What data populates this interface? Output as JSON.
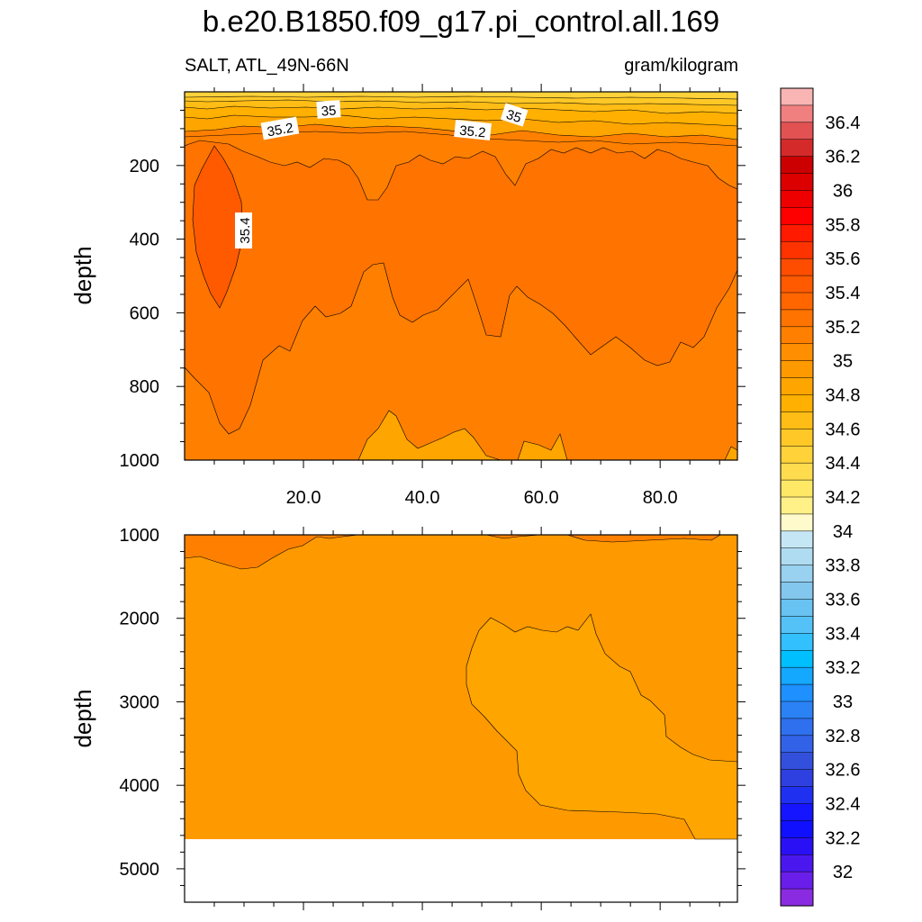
{
  "chart_data": [
    {
      "type": "contour",
      "panel": "upper",
      "title": "b.e20.B1850.f09_g17.pi_control.all.169",
      "subtitle_left": "SALT, ATL_49N-66N",
      "subtitle_right": "gram/kilogram",
      "ylabel": "depth",
      "xlabel": "",
      "xlim": [
        0,
        93
      ],
      "ylim": [
        1000,
        0
      ],
      "x_ticks": [
        20,
        40,
        60,
        80
      ],
      "x_tick_labels": [
        "20.0",
        "40.0",
        "60.0",
        "80.0"
      ],
      "y_ticks": [
        200,
        400,
        600,
        800,
        1000
      ],
      "y_tick_labels": [
        "200",
        "400",
        "600",
        "800",
        "1000"
      ],
      "contour_labels": [
        "35",
        "35",
        "35.2",
        "35.2",
        "35.4"
      ]
    },
    {
      "type": "contour",
      "panel": "lower",
      "ylabel": "depth",
      "xlim": [
        0,
        93
      ],
      "ylim": [
        5400,
        1000
      ],
      "y_ticks": [
        1000,
        2000,
        3000,
        4000,
        5000
      ],
      "y_tick_labels": [
        "1000",
        "2000",
        "3000",
        "4000",
        "5000"
      ],
      "data_bottom_depth": 4600
    }
  ],
  "colorbar": {
    "labels": [
      "36.4",
      "36.2",
      "36",
      "35.8",
      "35.6",
      "35.4",
      "35.2",
      "35",
      "34.8",
      "34.6",
      "34.4",
      "34.2",
      "34",
      "33.8",
      "33.6",
      "33.4",
      "33.2",
      "33",
      "32.8",
      "32.6",
      "32.4",
      "32.2",
      "32"
    ],
    "colors": [
      "#F9B4B4",
      "#F08080",
      "#E25252",
      "#D42A2A",
      "#CC0000",
      "#DD0000",
      "#EE0000",
      "#FF0000",
      "#FF1A00",
      "#FF3300",
      "#FF4D00",
      "#FF5A00",
      "#FF6600",
      "#FF7300",
      "#FF8000",
      "#FF8F00",
      "#FF9900",
      "#FFA500",
      "#FFB000",
      "#FFBD15",
      "#FFC826",
      "#FFD23A",
      "#FFDC4E",
      "#FFE866",
      "#FFF088",
      "#FFFACC",
      "#C5E6F5",
      "#B0DCF2",
      "#99D1F0",
      "#83C7EE",
      "#68C3F2",
      "#55C2F7",
      "#33C0FF",
      "#00BFFF",
      "#14A8FF",
      "#1E90FF",
      "#2A82F5",
      "#2E70EE",
      "#3262E8",
      "#3350DD",
      "#2F40E0",
      "#2030F0",
      "#1515FF",
      "#1010FF",
      "#2A10F5",
      "#4A18EE",
      "#6A1EEA",
      "#8A2BE2"
    ]
  }
}
